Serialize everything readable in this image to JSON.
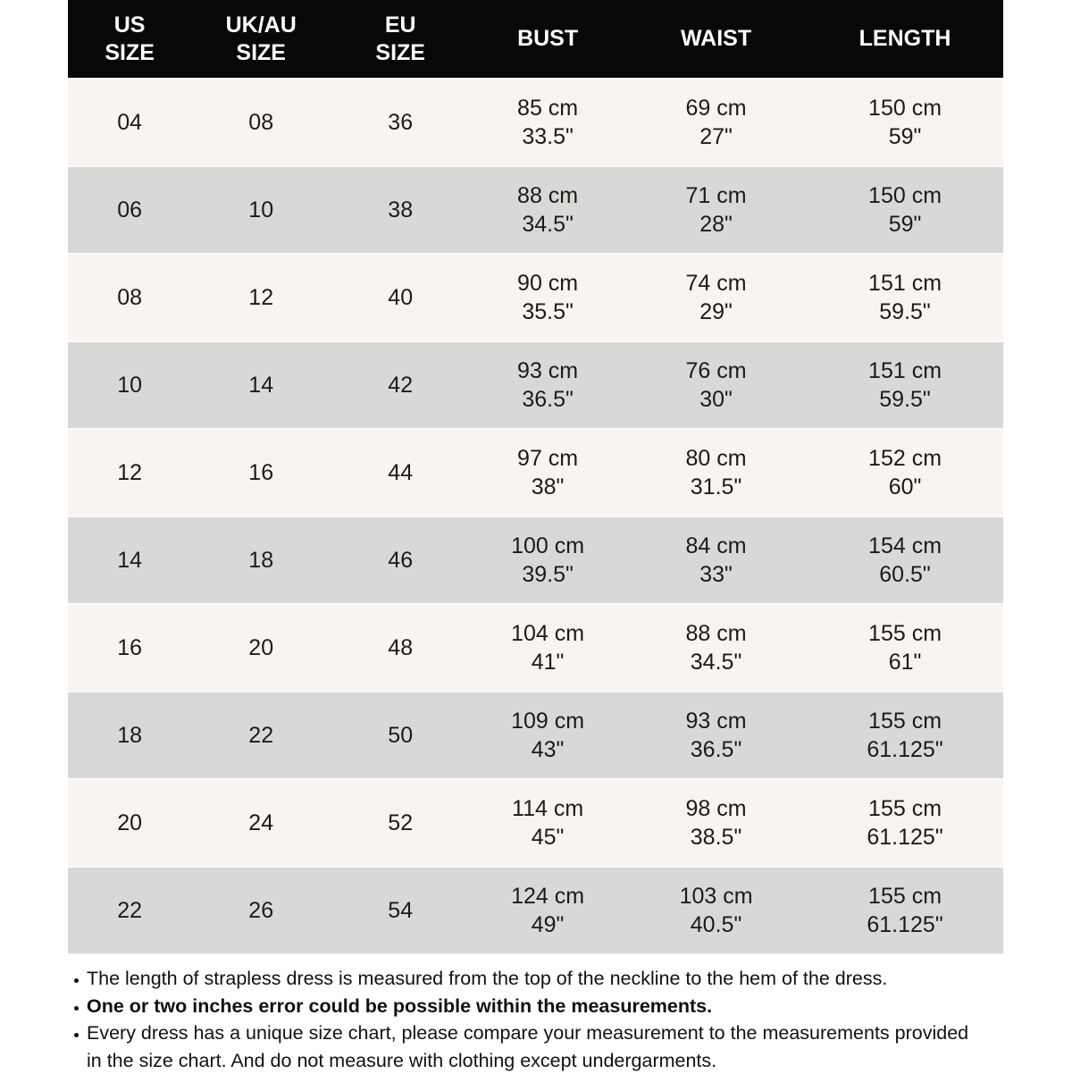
{
  "colors": {
    "header_bg": "#0a0707",
    "header_text": "#ffffff",
    "row_light": "#f7f4f1",
    "row_dark": "#d8d9d6",
    "cell_text": "#1d1a18",
    "note_text": "#131110",
    "page_bg": "#ffffff"
  },
  "table": {
    "columns": [
      {
        "key": "us-size",
        "label": "US SIZE",
        "lines": [
          "US",
          "SIZE"
        ]
      },
      {
        "key": "uk-au-size",
        "label": "UK/AU SIZE",
        "lines": [
          "UK/AU",
          "SIZE"
        ]
      },
      {
        "key": "eu-size",
        "label": "EU SIZE",
        "lines": [
          "EU",
          "SIZE"
        ]
      },
      {
        "key": "bust",
        "label": "BUST",
        "lines": [
          "BUST"
        ]
      },
      {
        "key": "waist",
        "label": "WAIST",
        "lines": [
          "WAIST"
        ]
      },
      {
        "key": "length",
        "label": "LENGTH",
        "lines": [
          "LENGTH"
        ]
      }
    ],
    "rows": [
      {
        "cells": [
          "04",
          "08",
          "36",
          [
            "85 cm",
            "33.5\""
          ],
          [
            "69 cm",
            "27\""
          ],
          [
            "150 cm",
            "59\""
          ]
        ]
      },
      {
        "cells": [
          "06",
          "10",
          "38",
          [
            "88 cm",
            "34.5\""
          ],
          [
            "71 cm",
            "28\""
          ],
          [
            "150 cm",
            "59\""
          ]
        ]
      },
      {
        "cells": [
          "08",
          "12",
          "40",
          [
            "90 cm",
            "35.5\""
          ],
          [
            "74 cm",
            "29\""
          ],
          [
            "151 cm",
            "59.5\""
          ]
        ]
      },
      {
        "cells": [
          "10",
          "14",
          "42",
          [
            "93 cm",
            "36.5\""
          ],
          [
            "76 cm",
            "30\""
          ],
          [
            "151 cm",
            "59.5\""
          ]
        ]
      },
      {
        "cells": [
          "12",
          "16",
          "44",
          [
            "97 cm",
            "38\""
          ],
          [
            "80 cm",
            "31.5\""
          ],
          [
            "152 cm",
            "60\""
          ]
        ]
      },
      {
        "cells": [
          "14",
          "18",
          "46",
          [
            "100 cm",
            "39.5\""
          ],
          [
            "84 cm",
            "33\""
          ],
          [
            "154 cm",
            "60.5\""
          ]
        ]
      },
      {
        "cells": [
          "16",
          "20",
          "48",
          [
            "104 cm",
            "41\""
          ],
          [
            "88 cm",
            "34.5\""
          ],
          [
            "155 cm",
            "61\""
          ]
        ]
      },
      {
        "cells": [
          "18",
          "22",
          "50",
          [
            "109 cm",
            "43\""
          ],
          [
            "93 cm",
            "36.5\""
          ],
          [
            "155 cm",
            "61.125\""
          ]
        ]
      },
      {
        "cells": [
          "20",
          "24",
          "52",
          [
            "114 cm",
            "45\""
          ],
          [
            "98 cm",
            "38.5\""
          ],
          [
            "155 cm",
            "61.125\""
          ]
        ]
      },
      {
        "cells": [
          "22",
          "26",
          "54",
          [
            "124 cm",
            "49\""
          ],
          [
            "103 cm",
            "40.5\""
          ],
          [
            "155 cm",
            "61.125\""
          ]
        ]
      }
    ]
  },
  "notes": [
    {
      "text": "The length of strapless dress is measured from the top of the neckline to the hem of the dress.",
      "bold": false
    },
    {
      "text": "One or two inches error could be possible within the measurements.",
      "bold": true
    },
    {
      "text": "Every dress has a unique size chart, please compare your measurement to the measurements provided in the size chart. And do not measure with clothing except undergarments.",
      "bold": false
    }
  ]
}
